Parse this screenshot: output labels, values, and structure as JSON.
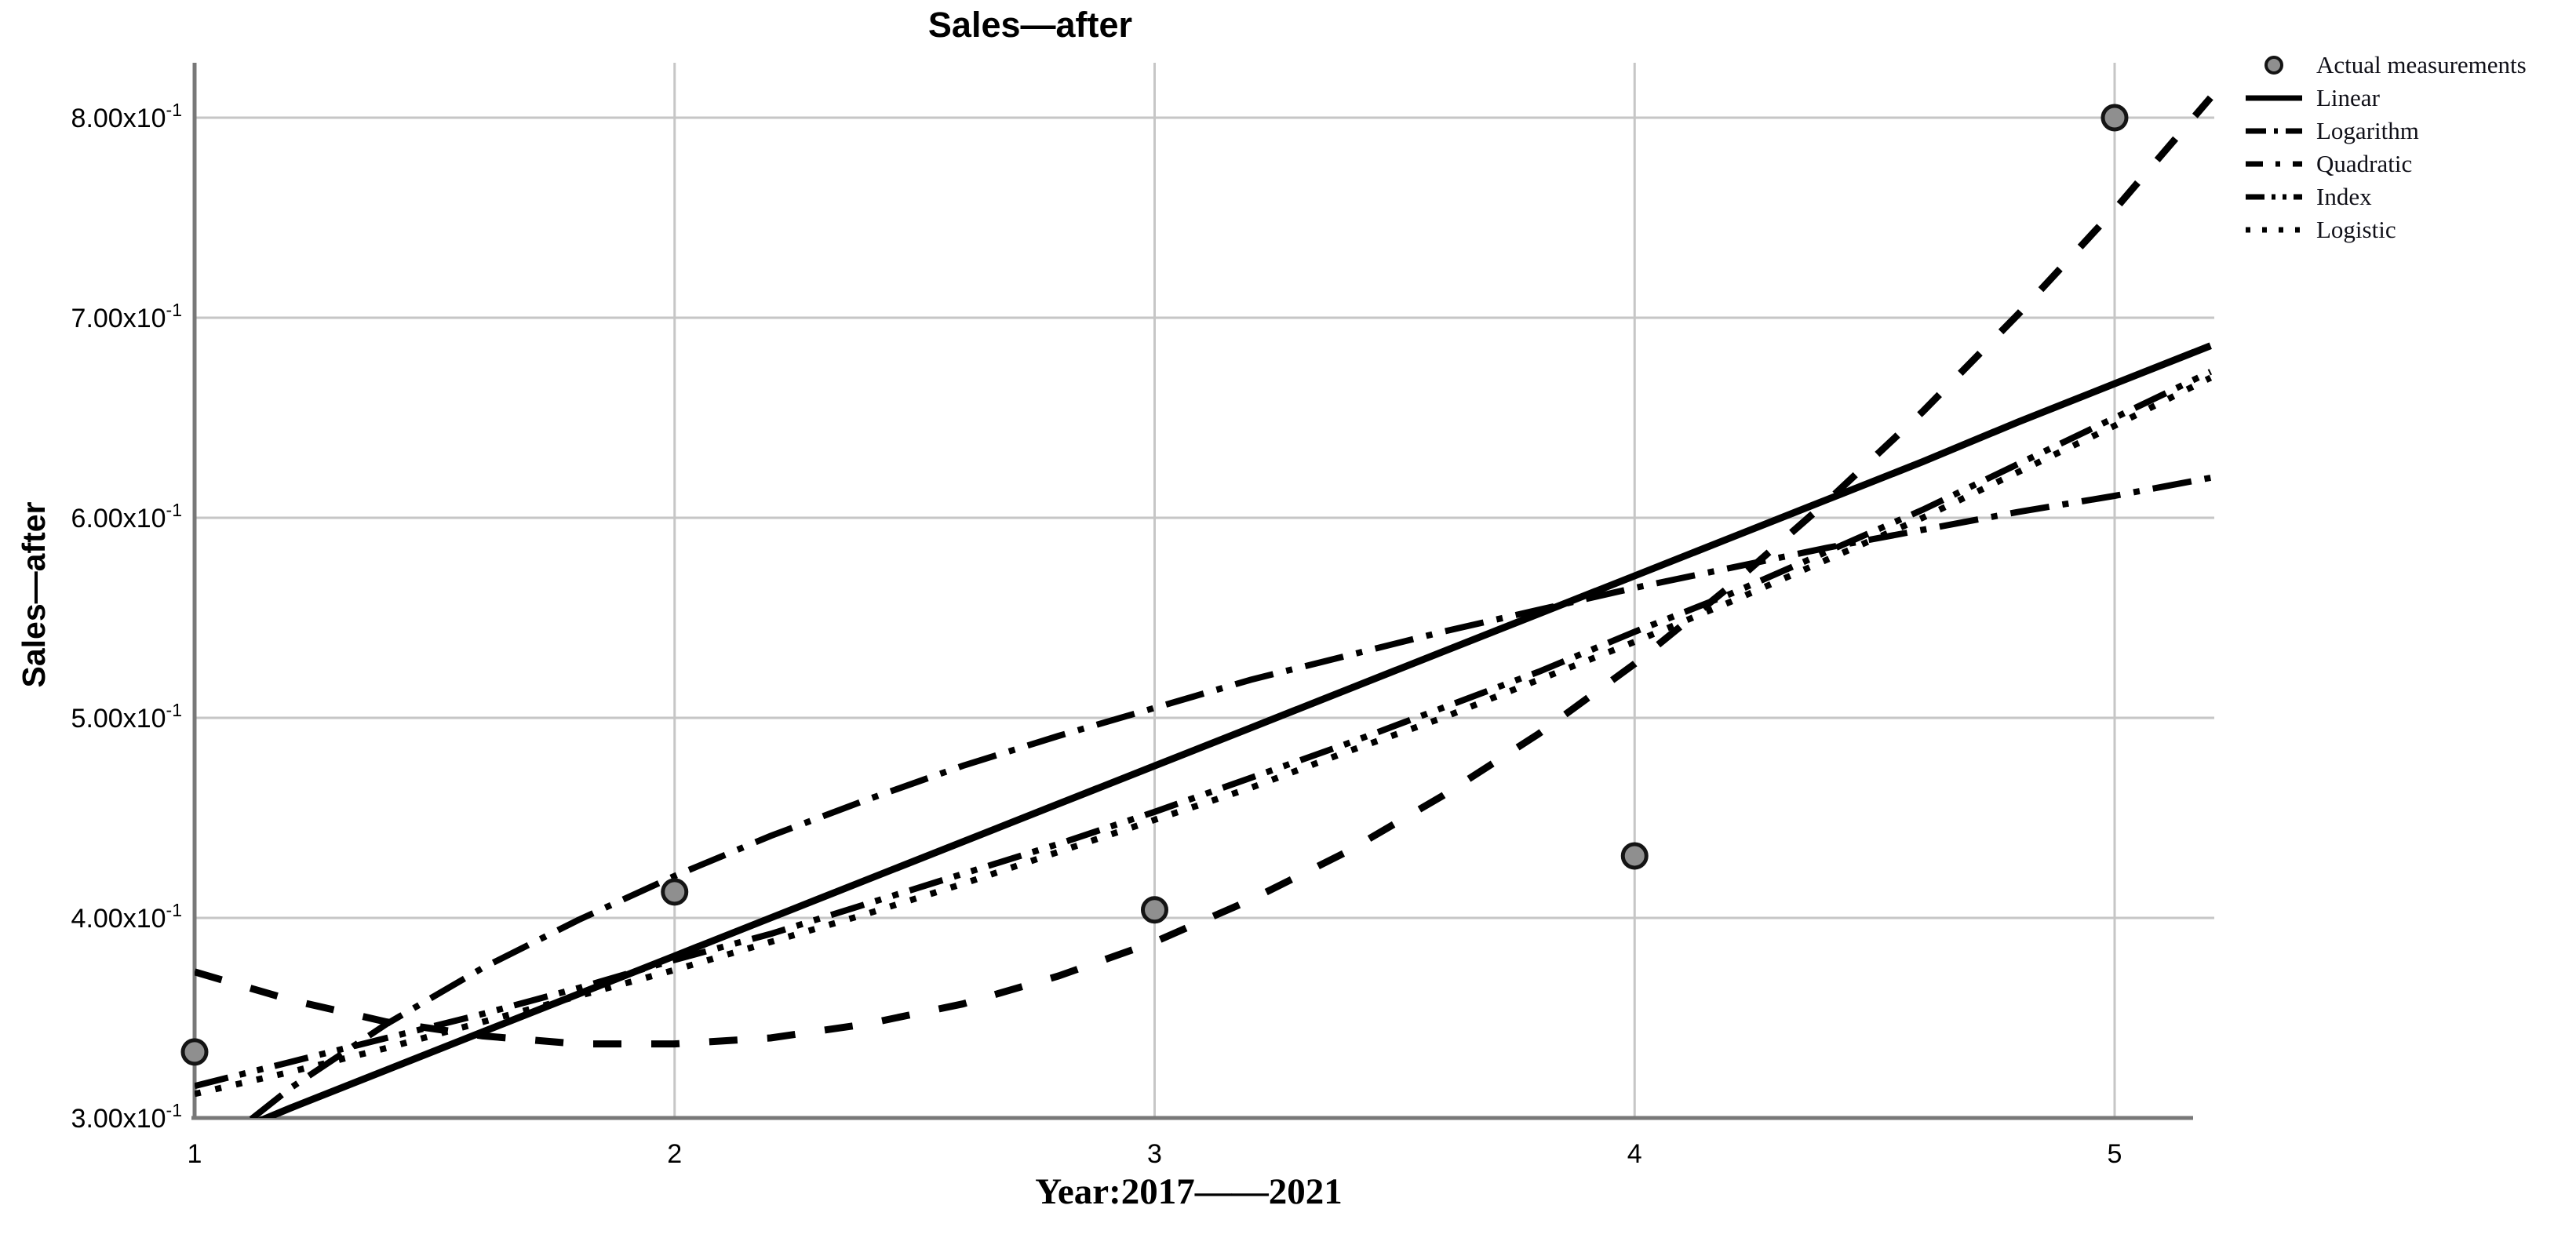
{
  "chart_data": {
    "type": "line",
    "title": "Sales—after",
    "ylabel": "Sales—after",
    "xlabel": "Year:2017——2021",
    "x_range": [
      1,
      5.207
    ],
    "y_range": [
      0.3,
      0.827
    ],
    "grid": true,
    "legend_position": "top-right",
    "x_ticks": [
      {
        "v": 1,
        "label": "1"
      },
      {
        "v": 2,
        "label": "2"
      },
      {
        "v": 3,
        "label": "3"
      },
      {
        "v": 4,
        "label": "4"
      },
      {
        "v": 5,
        "label": "5"
      }
    ],
    "y_ticks": [
      {
        "v": 0.3,
        "label": "3.00x10",
        "exp": "-1"
      },
      {
        "v": 0.4,
        "label": "4.00x10",
        "exp": "-1"
      },
      {
        "v": 0.5,
        "label": "5.00x10",
        "exp": "-1"
      },
      {
        "v": 0.6,
        "label": "6.00x10",
        "exp": "-1"
      },
      {
        "v": 0.7,
        "label": "7.00x10",
        "exp": "-1"
      },
      {
        "v": 0.8,
        "label": "8.00x10",
        "exp": "-1"
      }
    ],
    "actual_measurements": {
      "label": "Actual measurements",
      "x": [
        1,
        2,
        3,
        4,
        5
      ],
      "y": [
        0.333,
        0.413,
        0.404,
        0.431,
        0.8
      ]
    },
    "series": [
      {
        "name": "Linear",
        "dash": "solid",
        "width": 9,
        "points": [
          [
            1,
            0.285
          ],
          [
            1.2,
            0.305
          ],
          [
            1.4,
            0.324
          ],
          [
            1.6,
            0.343
          ],
          [
            1.8,
            0.362
          ],
          [
            2,
            0.381
          ],
          [
            2.2,
            0.4
          ],
          [
            2.4,
            0.419
          ],
          [
            2.6,
            0.438
          ],
          [
            2.8,
            0.457
          ],
          [
            3,
            0.476
          ],
          [
            3.2,
            0.495
          ],
          [
            3.4,
            0.514
          ],
          [
            3.6,
            0.533
          ],
          [
            3.8,
            0.552
          ],
          [
            4,
            0.571
          ],
          [
            4.2,
            0.59
          ],
          [
            4.4,
            0.609
          ],
          [
            4.6,
            0.628
          ],
          [
            4.8,
            0.648
          ],
          [
            5,
            0.667
          ],
          [
            5.2,
            0.686
          ]
        ]
      },
      {
        "name": "Logarithm",
        "dash": "dashdot",
        "width": 8,
        "points": [
          [
            1,
            0.277
          ],
          [
            1.2,
            0.315
          ],
          [
            1.4,
            0.347
          ],
          [
            1.6,
            0.375
          ],
          [
            1.8,
            0.399
          ],
          [
            2,
            0.421
          ],
          [
            2.2,
            0.441
          ],
          [
            2.4,
            0.459
          ],
          [
            2.6,
            0.476
          ],
          [
            2.8,
            0.491
          ],
          [
            3,
            0.505
          ],
          [
            3.2,
            0.519
          ],
          [
            3.4,
            0.531
          ],
          [
            3.6,
            0.543
          ],
          [
            3.8,
            0.554
          ],
          [
            4,
            0.565
          ],
          [
            4.2,
            0.575
          ],
          [
            4.4,
            0.585
          ],
          [
            4.6,
            0.594
          ],
          [
            4.8,
            0.603
          ],
          [
            5,
            0.611
          ],
          [
            5.2,
            0.62
          ]
        ]
      },
      {
        "name": "Quadratic",
        "dash": "dash",
        "width": 9,
        "points": [
          [
            1,
            0.373
          ],
          [
            1.2,
            0.359
          ],
          [
            1.4,
            0.348
          ],
          [
            1.6,
            0.341
          ],
          [
            1.8,
            0.337
          ],
          [
            2,
            0.337
          ],
          [
            2.2,
            0.34
          ],
          [
            2.4,
            0.347
          ],
          [
            2.6,
            0.357
          ],
          [
            2.8,
            0.371
          ],
          [
            3,
            0.388
          ],
          [
            3.2,
            0.409
          ],
          [
            3.4,
            0.433
          ],
          [
            3.6,
            0.461
          ],
          [
            3.8,
            0.492
          ],
          [
            4,
            0.527
          ],
          [
            4.2,
            0.566
          ],
          [
            4.4,
            0.608
          ],
          [
            4.6,
            0.653
          ],
          [
            4.8,
            0.702
          ],
          [
            5,
            0.754
          ],
          [
            5.2,
            0.81
          ]
        ]
      },
      {
        "name": "Index",
        "dash": "dashdotdot",
        "width": 8,
        "points": [
          [
            1,
            0.316
          ],
          [
            1.2,
            0.328
          ],
          [
            1.4,
            0.34
          ],
          [
            1.6,
            0.352
          ],
          [
            1.8,
            0.365
          ],
          [
            2,
            0.379
          ],
          [
            2.2,
            0.392
          ],
          [
            2.4,
            0.407
          ],
          [
            2.6,
            0.422
          ],
          [
            2.8,
            0.437
          ],
          [
            3,
            0.453
          ],
          [
            3.2,
            0.47
          ],
          [
            3.4,
            0.487
          ],
          [
            3.6,
            0.505
          ],
          [
            3.8,
            0.523
          ],
          [
            4,
            0.543
          ],
          [
            4.2,
            0.562
          ],
          [
            4.4,
            0.583
          ],
          [
            4.6,
            0.604
          ],
          [
            4.8,
            0.627
          ],
          [
            5,
            0.65
          ],
          [
            5.2,
            0.673
          ]
        ]
      },
      {
        "name": "Logistic",
        "dash": "dot",
        "width": 8,
        "points": [
          [
            1,
            0.312
          ],
          [
            1.2,
            0.323
          ],
          [
            1.4,
            0.335
          ],
          [
            1.6,
            0.348
          ],
          [
            1.8,
            0.361
          ],
          [
            2,
            0.374
          ],
          [
            2.2,
            0.388
          ],
          [
            2.4,
            0.402
          ],
          [
            2.6,
            0.417
          ],
          [
            2.8,
            0.433
          ],
          [
            3,
            0.449
          ],
          [
            3.2,
            0.465
          ],
          [
            3.4,
            0.483
          ],
          [
            3.6,
            0.5
          ],
          [
            3.8,
            0.519
          ],
          [
            4,
            0.538
          ],
          [
            4.2,
            0.558
          ],
          [
            4.4,
            0.579
          ],
          [
            4.6,
            0.6
          ],
          [
            4.8,
            0.623
          ],
          [
            5,
            0.646
          ],
          [
            5.2,
            0.67
          ]
        ]
      }
    ],
    "colors": {
      "line": "#000000",
      "grid": "#c6c6c6",
      "axis": "#787878",
      "point_fill": "#8f8f8f",
      "point_stroke": "#141414",
      "text": "#000000"
    }
  }
}
